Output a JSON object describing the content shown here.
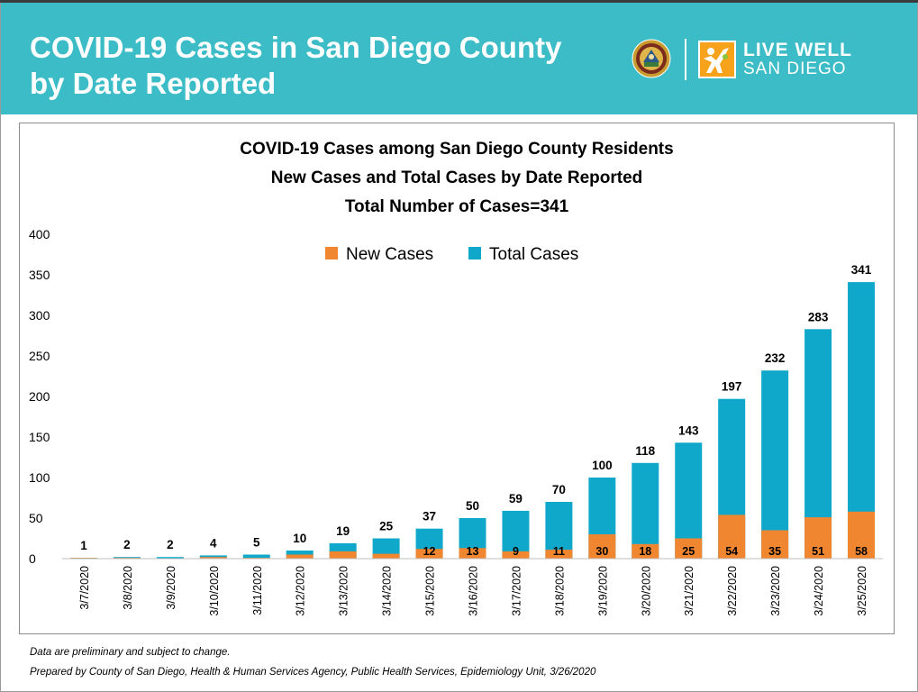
{
  "header": {
    "title_line1": "COVID-19 Cases in San Diego County",
    "title_line2": "by Date Reported",
    "logo_line1": "LIVE WELL",
    "logo_line2": "SAN DIEGO"
  },
  "colors": {
    "banner": "#3cbcc6",
    "new_cases": "#f08630",
    "total_cases": "#10a8ca"
  },
  "chart_data": {
    "type": "bar",
    "title": [
      "COVID-19 Cases among San Diego County Residents",
      "New Cases and Total Cases by Date Reported",
      "Total Number of Cases=341"
    ],
    "categories": [
      "3/7/2020",
      "3/8/2020",
      "3/9/2020",
      "3/10/2020",
      "3/11/2020",
      "3/12/2020",
      "3/13/2020",
      "3/14/2020",
      "3/15/2020",
      "3/16/2020",
      "3/17/2020",
      "3/18/2020",
      "3/19/2020",
      "3/20/2020",
      "3/21/2020",
      "3/22/2020",
      "3/23/2020",
      "3/24/2020",
      "3/25/2020"
    ],
    "series": [
      {
        "name": "Total Cases",
        "values": [
          1,
          2,
          2,
          4,
          5,
          10,
          19,
          25,
          37,
          50,
          59,
          70,
          100,
          118,
          143,
          197,
          232,
          283,
          341
        ]
      },
      {
        "name": "New Cases",
        "values": [
          1,
          1,
          0,
          2,
          1,
          5,
          9,
          6,
          12,
          13,
          9,
          11,
          30,
          18,
          25,
          54,
          35,
          51,
          58
        ]
      }
    ],
    "new_case_labels": [
      "",
      "",
      "",
      "",
      "",
      "",
      "",
      "",
      "12",
      "13",
      "9",
      "11",
      "30",
      "18",
      "25",
      "54",
      "35",
      "51",
      "58"
    ],
    "yticks": [
      "0",
      "50",
      "100",
      "150",
      "200",
      "250",
      "300",
      "350",
      "400"
    ],
    "ylim": [
      0,
      400
    ],
    "legend": [
      "New Cases",
      "Total Cases"
    ],
    "legend_position": "top-center",
    "grid": false,
    "xlabel": "",
    "ylabel": ""
  },
  "footer": {
    "note1": "Data are preliminary and subject to change.",
    "note2": "Prepared by County of San Diego, Health & Human Services Agency, Public Health Services, Epidemiology Unit, 3/26/2020"
  }
}
